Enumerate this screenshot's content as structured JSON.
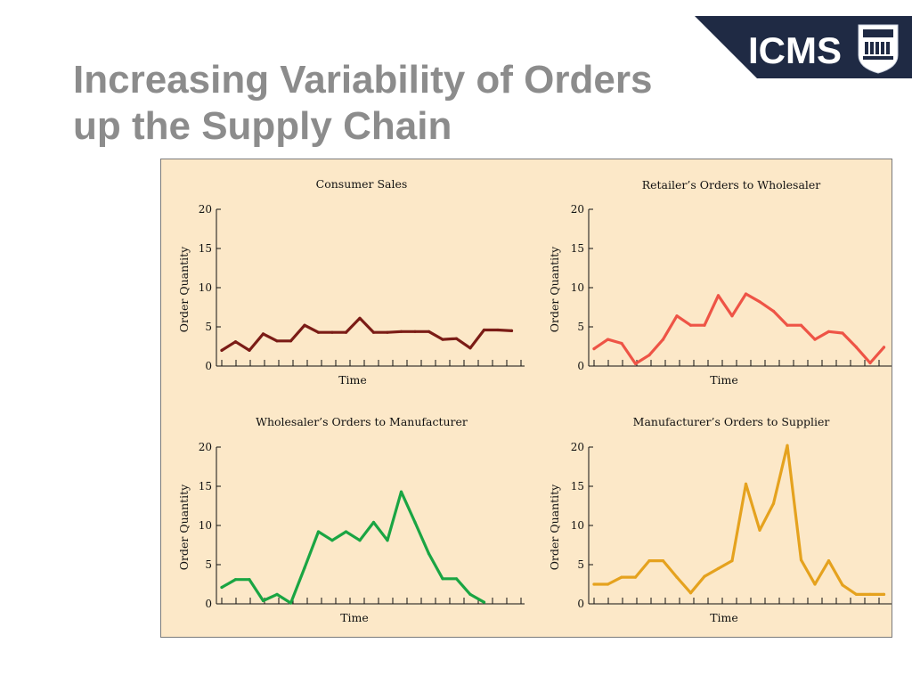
{
  "slide": {
    "title_line1": "Increasing Variability of Orders",
    "title_line2": "up the Supply Chain",
    "title_color": "#8c8c8c"
  },
  "logo": {
    "text": "ICMS",
    "crest_text": "INTERNATIONAL COLLEGE OF MANAGEMENT SYDNEY",
    "background": "#1f2a44"
  },
  "figure": {
    "background": "#fce8c8"
  },
  "chart_data": [
    {
      "type": "line",
      "title": "Consumer Sales",
      "xlabel": "Time",
      "ylabel": "Order Quantity",
      "ylim": [
        0,
        20
      ],
      "yticks": [
        "0",
        "5",
        "10",
        "15",
        "20"
      ],
      "color": "#7b1c16",
      "x": [
        1,
        2,
        3,
        4,
        5,
        6,
        7,
        8,
        9,
        10,
        11,
        12,
        13,
        14,
        15,
        16,
        17,
        18,
        19,
        20,
        21,
        22
      ],
      "series": [
        {
          "values": [
            2,
            3.1,
            2,
            4.1,
            3.2,
            3.2,
            5.2,
            4.3,
            4.3,
            4.3,
            6.1,
            4.3,
            4.3,
            4.4,
            4.4,
            4.4,
            3.4,
            3.5,
            2.3,
            4.6,
            4.6,
            4.5
          ]
        }
      ]
    },
    {
      "type": "line",
      "title": "Retailer’s Orders to Wholesaler",
      "xlabel": "Time",
      "ylabel": "Order Quantity",
      "ylim": [
        0,
        20
      ],
      "yticks": [
        "0",
        "5",
        "10",
        "15",
        "20"
      ],
      "color": "#ee5446",
      "x": [
        1,
        2,
        3,
        4,
        5,
        6,
        7,
        8,
        9,
        10,
        11,
        12,
        13,
        14,
        15,
        16,
        17,
        18,
        19,
        20,
        21,
        22
      ],
      "series": [
        {
          "values": [
            2.2,
            3.4,
            2.9,
            0.3,
            1.4,
            3.4,
            6.4,
            5.2,
            5.2,
            9,
            6.4,
            9.2,
            8.2,
            7,
            5.2,
            5.2,
            3.4,
            4.4,
            4.2,
            2.4,
            0.4,
            2.4
          ]
        }
      ]
    },
    {
      "type": "line",
      "title": "Wholesaler’s Orders to Manufacturer",
      "xlabel": "Time",
      "ylabel": "Order Quantity",
      "ylim": [
        0,
        20
      ],
      "yticks": [
        "0",
        "5",
        "10",
        "15",
        "20"
      ],
      "color": "#1aa543",
      "x": [
        1,
        2,
        3,
        4,
        5,
        6,
        7,
        8,
        9,
        10,
        11,
        12,
        13,
        14,
        15,
        16,
        17,
        18,
        19,
        20
      ],
      "series": [
        {
          "values": [
            2.1,
            3.1,
            3.1,
            0.4,
            1.2,
            0.1,
            4.6,
            9.2,
            8.1,
            9.2,
            8.1,
            10.4,
            8.1,
            14.3,
            10.4,
            6.4,
            3.2,
            3.2,
            1.2,
            0.2
          ]
        }
      ]
    },
    {
      "type": "line",
      "title": "Manufacturer’s Orders to Supplier",
      "xlabel": "Time",
      "ylabel": "Order Quantity",
      "ylim": [
        0,
        20
      ],
      "yticks": [
        "0",
        "5",
        "10",
        "15",
        "20"
      ],
      "color": "#e5a21e",
      "x": [
        1,
        2,
        3,
        4,
        5,
        6,
        7,
        8,
        9,
        10,
        11,
        12,
        13,
        14,
        15,
        16,
        17,
        18,
        19,
        20,
        21,
        22
      ],
      "series": [
        {
          "values": [
            2.5,
            2.5,
            3.4,
            3.4,
            5.5,
            5.5,
            3.4,
            1.4,
            3.5,
            4.5,
            5.5,
            15.3,
            9.4,
            12.8,
            20.2,
            5.6,
            2.5,
            5.5,
            2.4,
            1.2,
            1.2,
            1.2
          ]
        }
      ]
    }
  ]
}
